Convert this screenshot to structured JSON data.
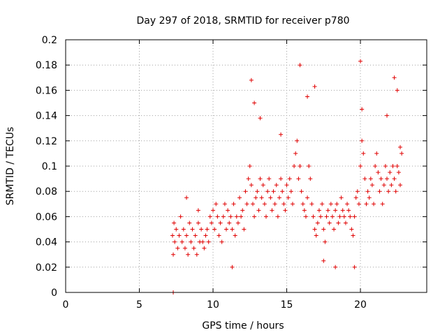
{
  "chart_data": {
    "type": "scatter",
    "title": "Day 297 of 2018, SRMTID for receiver p780",
    "xlabel": "GPS time / hours",
    "ylabel": "SRMTID / TECUs",
    "xlim": [
      0,
      24.5
    ],
    "ylim": [
      0,
      0.2
    ],
    "xticks": [
      0,
      5,
      10,
      15,
      20
    ],
    "yticks": [
      0,
      0.02,
      0.04,
      0.06,
      0.08,
      0.1,
      0.12,
      0.14,
      0.16,
      0.18,
      0.2
    ],
    "xtick_labels": [
      "0",
      "5",
      "10",
      "15",
      "20"
    ],
    "ytick_labels": [
      "0",
      "0.02",
      "0.04",
      "0.06",
      "0.08",
      "0.1",
      "0.12",
      "0.14",
      "0.16",
      "0.18",
      "0.2"
    ],
    "grid": true,
    "marker": "+",
    "color": "#e00000",
    "series": [
      {
        "name": "SRMTID",
        "x": [
          7.25,
          7.3,
          7.35,
          7.4,
          7.5,
          7.6,
          7.7,
          7.8,
          7.9,
          8.0,
          8.1,
          8.2,
          8.3,
          8.4,
          8.5,
          8.6,
          8.7,
          8.8,
          8.9,
          9.0,
          9.1,
          9.2,
          9.3,
          9.4,
          9.5,
          9.6,
          9.7,
          9.8,
          9.9,
          10.0,
          10.1,
          10.2,
          10.3,
          10.4,
          10.5,
          10.6,
          10.7,
          10.8,
          10.9,
          11.0,
          11.1,
          11.2,
          11.3,
          11.4,
          11.5,
          11.6,
          11.7,
          11.8,
          11.9,
          12.0,
          12.1,
          12.2,
          12.3,
          12.4,
          12.5,
          12.6,
          12.7,
          12.8,
          12.9,
          13.0,
          13.1,
          13.2,
          13.3,
          13.4,
          13.5,
          13.6,
          13.7,
          13.8,
          13.9,
          14.0,
          14.1,
          14.2,
          14.3,
          14.4,
          14.5,
          14.6,
          14.7,
          14.8,
          14.9,
          15.0,
          15.1,
          15.2,
          15.3,
          15.4,
          15.5,
          15.6,
          15.7,
          15.8,
          15.9,
          16.0,
          16.1,
          16.2,
          16.3,
          16.4,
          16.5,
          16.6,
          16.7,
          16.8,
          16.9,
          17.0,
          17.1,
          17.2,
          17.3,
          17.4,
          17.5,
          17.6,
          17.7,
          17.8,
          17.9,
          18.0,
          18.1,
          18.2,
          18.3,
          18.4,
          18.5,
          18.6,
          18.7,
          18.8,
          18.9,
          19.0,
          19.1,
          19.2,
          19.3,
          19.4,
          19.5,
          19.6,
          19.7,
          19.8,
          19.9,
          20.0,
          20.1,
          20.2,
          20.3,
          20.4,
          20.5,
          20.6,
          20.7,
          20.8,
          20.9,
          21.0,
          21.1,
          21.2,
          21.3,
          21.4,
          21.5,
          21.6,
          21.7,
          21.8,
          21.9,
          22.0,
          22.1,
          22.2,
          22.3,
          22.4,
          22.5,
          22.6,
          22.7,
          22.8
        ],
        "y": [
          0.045,
          0.03,
          0.055,
          0.04,
          0.05,
          0.035,
          0.045,
          0.06,
          0.04,
          0.05,
          0.035,
          0.045,
          0.03,
          0.055,
          0.04,
          0.05,
          0.035,
          0.045,
          0.03,
          0.055,
          0.04,
          0.05,
          0.04,
          0.035,
          0.045,
          0.05,
          0.04,
          0.06,
          0.055,
          0.065,
          0.05,
          0.07,
          0.06,
          0.045,
          0.055,
          0.04,
          0.06,
          0.07,
          0.05,
          0.065,
          0.055,
          0.06,
          0.05,
          0.07,
          0.045,
          0.06,
          0.055,
          0.075,
          0.06,
          0.065,
          0.05,
          0.08,
          0.07,
          0.09,
          0.1,
          0.085,
          0.07,
          0.06,
          0.075,
          0.08,
          0.065,
          0.09,
          0.075,
          0.085,
          0.07,
          0.06,
          0.08,
          0.09,
          0.075,
          0.065,
          0.08,
          0.07,
          0.085,
          0.06,
          0.075,
          0.09,
          0.08,
          0.07,
          0.065,
          0.085,
          0.075,
          0.09,
          0.08,
          0.07,
          0.1,
          0.11,
          0.12,
          0.09,
          0.1,
          0.08,
          0.07,
          0.065,
          0.06,
          0.075,
          0.1,
          0.09,
          0.07,
          0.06,
          0.05,
          0.045,
          0.055,
          0.065,
          0.06,
          0.07,
          0.05,
          0.04,
          0.06,
          0.065,
          0.055,
          0.07,
          0.06,
          0.05,
          0.065,
          0.07,
          0.055,
          0.06,
          0.075,
          0.065,
          0.06,
          0.055,
          0.07,
          0.065,
          0.06,
          0.05,
          0.045,
          0.06,
          0.075,
          0.08,
          0.07,
          0.1,
          0.12,
          0.11,
          0.09,
          0.07,
          0.08,
          0.075,
          0.09,
          0.085,
          0.07,
          0.1,
          0.11,
          0.095,
          0.08,
          0.09,
          0.07,
          0.085,
          0.1,
          0.09,
          0.08,
          0.095,
          0.085,
          0.1,
          0.09,
          0.08,
          0.1,
          0.095,
          0.085,
          0.11
        ]
      }
    ],
    "extra_points": {
      "x": [
        7.3,
        12.6,
        15.9,
        16.4,
        16.9,
        20.0,
        22.3,
        22.5,
        20.1,
        12.8,
        11.3,
        8.2,
        9.0,
        13.2,
        14.6,
        17.5,
        18.3,
        19.6,
        21.8,
        22.7
      ],
      "y": [
        0.0,
        0.168,
        0.18,
        0.155,
        0.163,
        0.183,
        0.17,
        0.16,
        0.145,
        0.15,
        0.02,
        0.075,
        0.065,
        0.138,
        0.125,
        0.025,
        0.02,
        0.02,
        0.14,
        0.115
      ]
    }
  }
}
